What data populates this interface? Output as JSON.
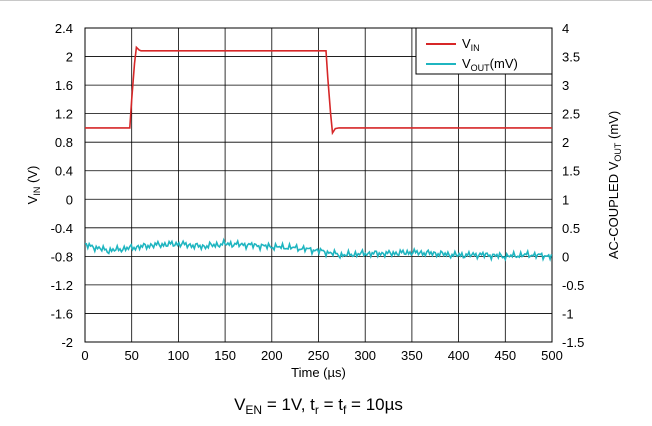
{
  "chart_data": {
    "type": "line",
    "xlabel": "Time (µs)",
    "xlim": [
      0,
      500
    ],
    "x_ticks": [
      "0",
      "50",
      "100",
      "150",
      "200",
      "250",
      "300",
      "350",
      "400",
      "450",
      "500"
    ],
    "ylabel_left": {
      "base": "V",
      "sub": "IN",
      "suffix": " (V)"
    },
    "ylim_left": [
      -2,
      2.4
    ],
    "y_ticks_left": [
      "2.4",
      "2",
      "1.6",
      "1.2",
      "0.8",
      "0.4",
      "0",
      "-0.4",
      "-0.8",
      "-1.2",
      "-1.6",
      "-2"
    ],
    "ylabel_right": {
      "prefix": "AC-COUPLED V",
      "sub": "OUT",
      "suffix": " (mV)"
    },
    "ylim_right": [
      -1.5,
      4
    ],
    "y_ticks_right": [
      "4",
      "3.5",
      "3",
      "2.5",
      "2",
      "1.5",
      "1",
      "0.5",
      "0",
      "-0.5",
      "-1",
      "-1.5"
    ],
    "grid": true,
    "legend_position": "top-right",
    "caption": {
      "v": "V",
      "en": "EN",
      "mid": " = 1V, t",
      "r": "r",
      "eq": " = t",
      "f": "f",
      "end": " = 10µs"
    },
    "series": [
      {
        "name": {
          "base": "V",
          "sub": "IN",
          "suffix": ""
        },
        "axis": "left",
        "color": "#d62728",
        "x": [
          0,
          48,
          50,
          53,
          55,
          58,
          60,
          62,
          258,
          260,
          263,
          265,
          268,
          272,
          280,
          500
        ],
        "y": [
          1.0,
          1.0,
          1.4,
          1.9,
          2.13,
          2.09,
          2.08,
          2.08,
          2.08,
          1.7,
          1.2,
          0.93,
          0.99,
          1.0,
          1.0,
          1.0
        ]
      },
      {
        "name": {
          "base": "V",
          "sub": "OUT",
          "suffix": "(mV)"
        },
        "axis": "right",
        "color": "#1fb5c0",
        "x": [
          0,
          25,
          50,
          75,
          100,
          125,
          150,
          175,
          200,
          225,
          250,
          275,
          300,
          325,
          350,
          375,
          400,
          425,
          450,
          475,
          500
        ],
        "y": [
          0.2,
          0.1,
          0.15,
          0.2,
          0.22,
          0.17,
          0.22,
          0.2,
          0.17,
          0.15,
          0.1,
          0.02,
          0.05,
          0.05,
          0.07,
          0.05,
          0.02,
          0.03,
          0.0,
          0.03,
          0.0
        ]
      }
    ]
  }
}
